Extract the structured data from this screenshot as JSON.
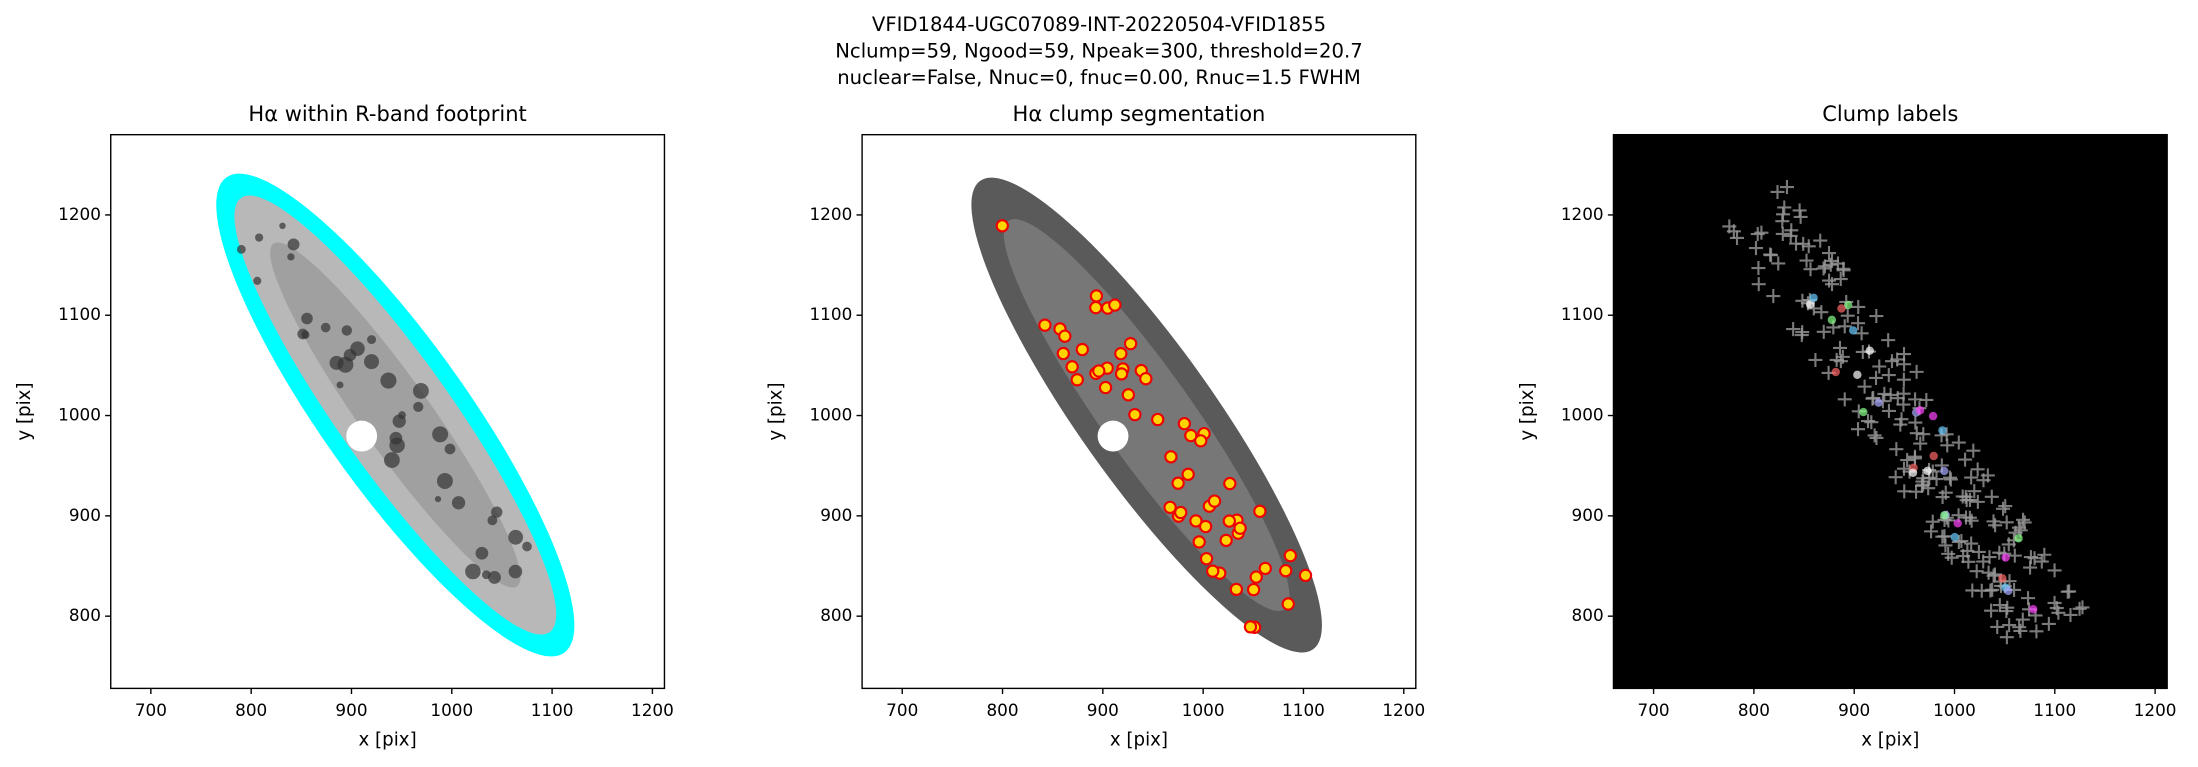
{
  "figure": {
    "title": [
      "VFID1844-UGC07089-INT-20220504-VFID1855",
      "Nclump=59, Ngood=59, Npeak=300, threshold=20.7",
      "nuclear=False, Nnuc=0, fnuc=0.00, Rnuc=1.5 FWHM"
    ]
  },
  "chart_data": [
    {
      "type": "image",
      "title": "Hα within R-band footprint",
      "xlabel": "x [pix]",
      "ylabel": "y [pix]",
      "xlim": [
        660,
        1212
      ],
      "ylim": [
        728,
        1280
      ],
      "xticks": [
        700,
        800,
        900,
        1000,
        1100,
        1200
      ],
      "yticks": [
        800,
        900,
        1000,
        1100,
        1200
      ]
    },
    {
      "type": "image",
      "title": "Hα clump segmentation",
      "xlabel": "x [pix]",
      "ylabel": "y [pix]",
      "xlim": [
        660,
        1212
      ],
      "ylim": [
        728,
        1280
      ],
      "xticks": [
        700,
        800,
        900,
        1000,
        1100,
        1200
      ],
      "yticks": [
        800,
        900,
        1000,
        1100,
        1200
      ]
    },
    {
      "type": "image",
      "title": "Clump labels",
      "xlabel": "x [pix]",
      "ylabel": "y [pix]",
      "xlim": [
        660,
        1212
      ],
      "ylim": [
        728,
        1280
      ],
      "xticks": [
        700,
        800,
        900,
        1000,
        1100,
        1200
      ],
      "yticks": [
        800,
        900,
        1000,
        1100,
        1200
      ]
    }
  ]
}
